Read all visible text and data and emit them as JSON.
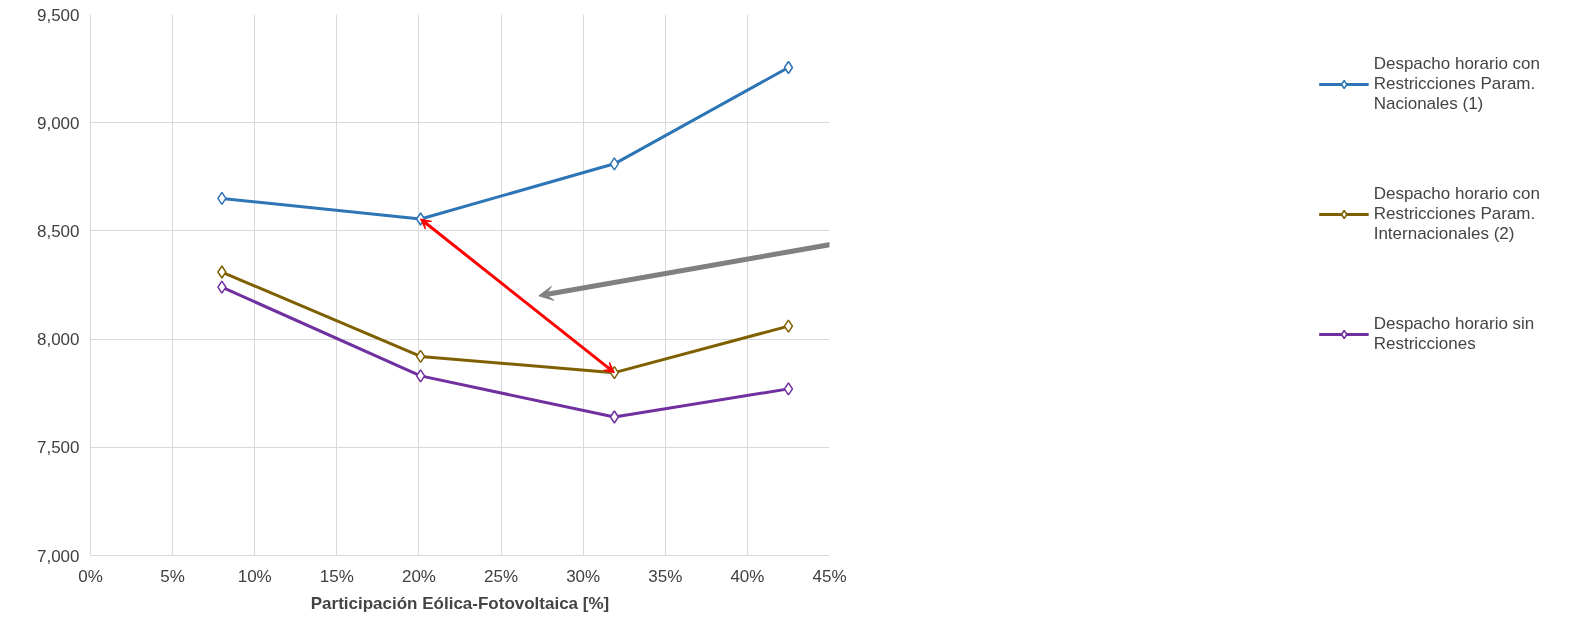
{
  "chart_data": {
    "type": "line",
    "xlabel": "Participación Eólica-Fotovoltaica [%]",
    "x": [
      8.0,
      20.1,
      31.9,
      42.5
    ],
    "series": [
      {
        "name": "Despacho horario con Restricciones Param. Nacionales (1)",
        "color": "#2e75b6",
        "values": [
          8650,
          8555,
          8810,
          9255
        ]
      },
      {
        "name": "Despacho horario con Restricciones Param. Internacionales (2)",
        "color": "#7f6000",
        "values": [
          8310,
          7920,
          7845,
          8060
        ]
      },
      {
        "name": "Despacho horario sin Restricciones",
        "color": "#7030a0",
        "values": [
          8240,
          7830,
          7640,
          7770
        ]
      }
    ],
    "xlim": [
      0,
      45
    ],
    "xticks": [
      {
        "value": 0,
        "label": "0%"
      },
      {
        "value": 5,
        "label": "5%"
      },
      {
        "value": 10,
        "label": "10%"
      },
      {
        "value": 15,
        "label": "15%"
      },
      {
        "value": 20,
        "label": "20%"
      },
      {
        "value": 25,
        "label": "25%"
      },
      {
        "value": 30,
        "label": "30%"
      },
      {
        "value": 35,
        "label": "35%"
      },
      {
        "value": 40,
        "label": "40%"
      },
      {
        "value": 45,
        "label": "45%"
      }
    ],
    "ylim": [
      7000,
      9500
    ],
    "yticks": [
      {
        "value": 7000,
        "label": "7,000"
      },
      {
        "value": 7500,
        "label": "7,500"
      },
      {
        "value": 8000,
        "label": "8,000"
      },
      {
        "value": 8500,
        "label": "8,500"
      },
      {
        "value": 9000,
        "label": "9,000"
      },
      {
        "value": 9500,
        "label": "9,500"
      }
    ],
    "grid": true,
    "legend": "right",
    "marker": "diamond",
    "line_style": "solid"
  }
}
